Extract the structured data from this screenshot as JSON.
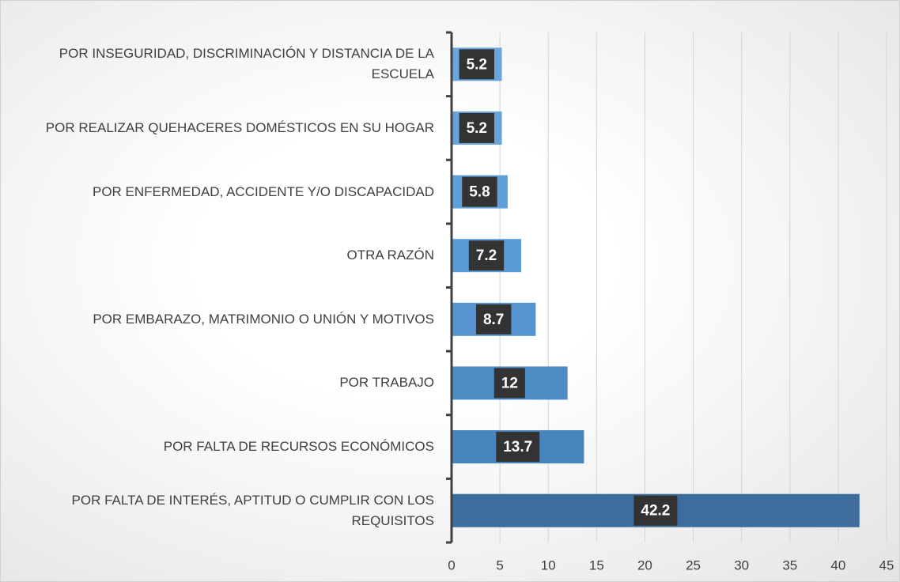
{
  "chart_data": {
    "type": "barh",
    "categories": [
      "POR INSEGURIDAD, DISCRIMINACIÓN Y DISTANCIA DE LA ESCUELA",
      "POR REALIZAR QUEHACERES DOMÉSTICOS EN SU HOGAR",
      "POR ENFERMEDAD, ACCIDENTE Y/O DISCAPACIDAD",
      "OTRA RAZÓN",
      "POR EMBARAZO, MATRIMONIO O UNIÓN Y MOTIVOS",
      "POR TRABAJO",
      "POR FALTA DE RECURSOS ECONÓMICOS",
      "POR FALTA DE INTERÉS, APTITUD O CUMPLIR CON LOS REQUISITOS"
    ],
    "values": [
      5.2,
      5.2,
      5.8,
      7.2,
      8.7,
      12,
      13.7,
      42.2
    ],
    "colors": [
      "#6aa6dc",
      "#66a3da",
      "#5fa0d8",
      "#5b9bd5",
      "#5594ce",
      "#4d8cc5",
      "#4985bd",
      "#3d6d9c"
    ],
    "xlim": [
      0,
      45
    ],
    "xticks": [
      0,
      5,
      10,
      15,
      20,
      25,
      30,
      35,
      40,
      45
    ],
    "grid": true
  }
}
